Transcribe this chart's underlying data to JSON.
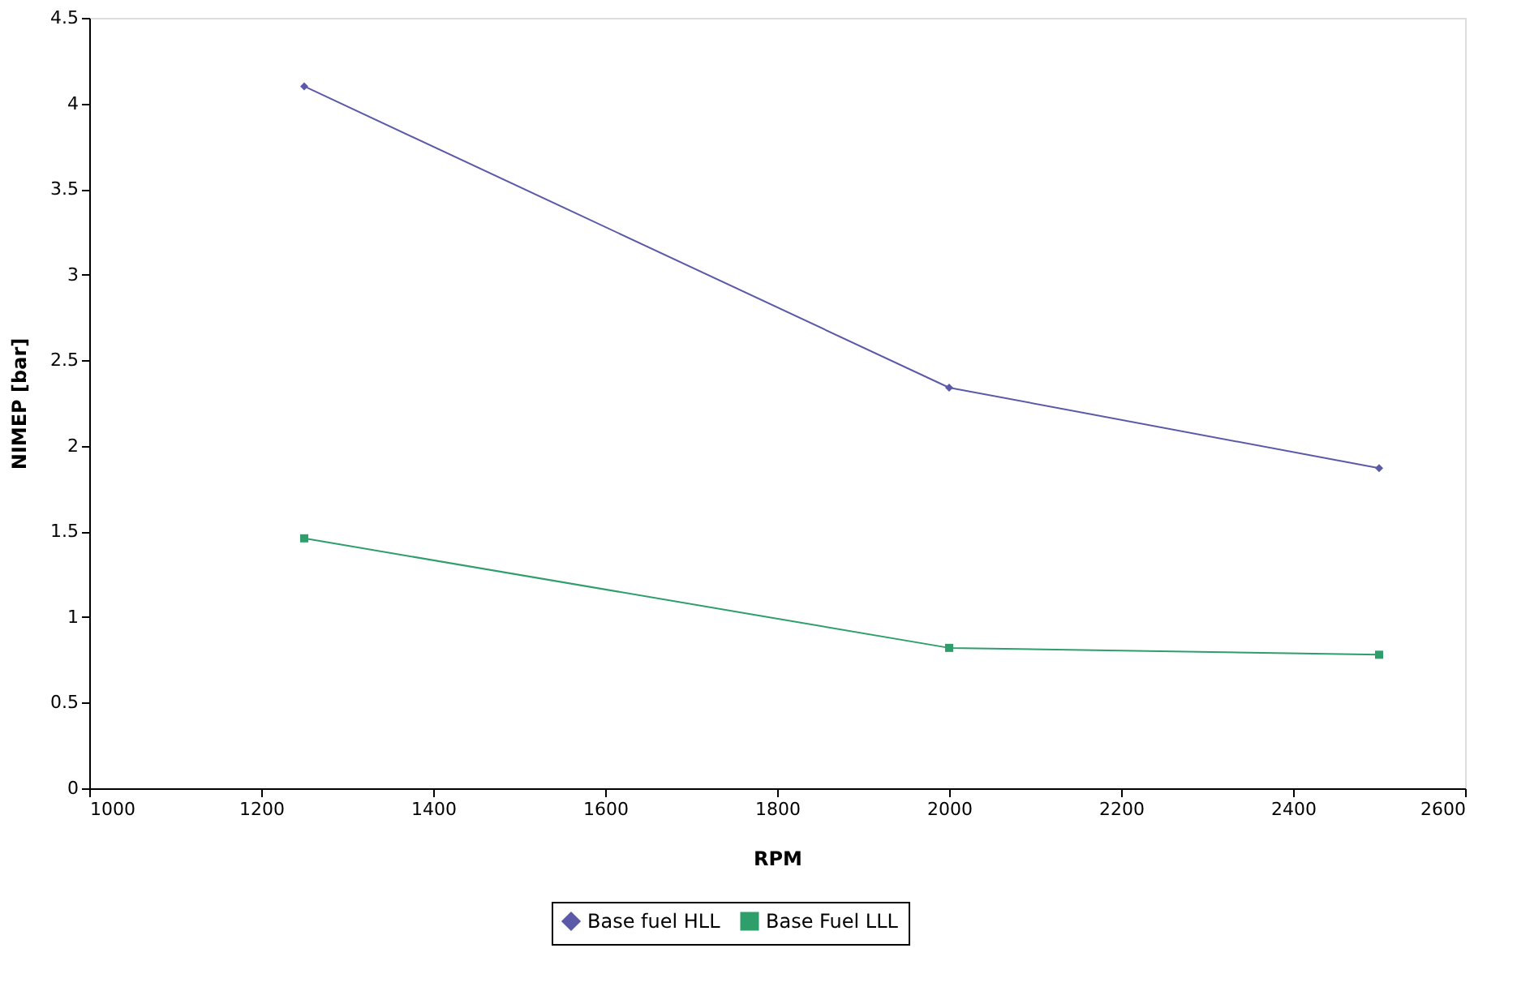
{
  "chart_data": {
    "type": "line",
    "xlabel": "RPM",
    "ylabel": "NIMEP [bar]",
    "x": [
      1250,
      2000,
      2500
    ],
    "xlim": [
      1000,
      2600
    ],
    "xticks": [
      1000,
      1200,
      1400,
      1600,
      1800,
      2000,
      2200,
      2400,
      2600
    ],
    "ylim": [
      0,
      4.5
    ],
    "yticks": [
      0,
      0.5,
      1,
      1.5,
      2,
      2.5,
      3,
      3.5,
      4,
      4.5
    ],
    "grid": false,
    "legend": "bottom",
    "line_style": "solid",
    "series": [
      {
        "name": "Base fuel HLL",
        "color": "#5a5aa8",
        "marker": "diamond",
        "values": [
          4.1,
          2.34,
          1.87
        ]
      },
      {
        "name": "Base Fuel LLL",
        "color": "#2e9e6a",
        "marker": "square",
        "values": [
          1.46,
          0.82,
          0.78
        ]
      }
    ]
  }
}
